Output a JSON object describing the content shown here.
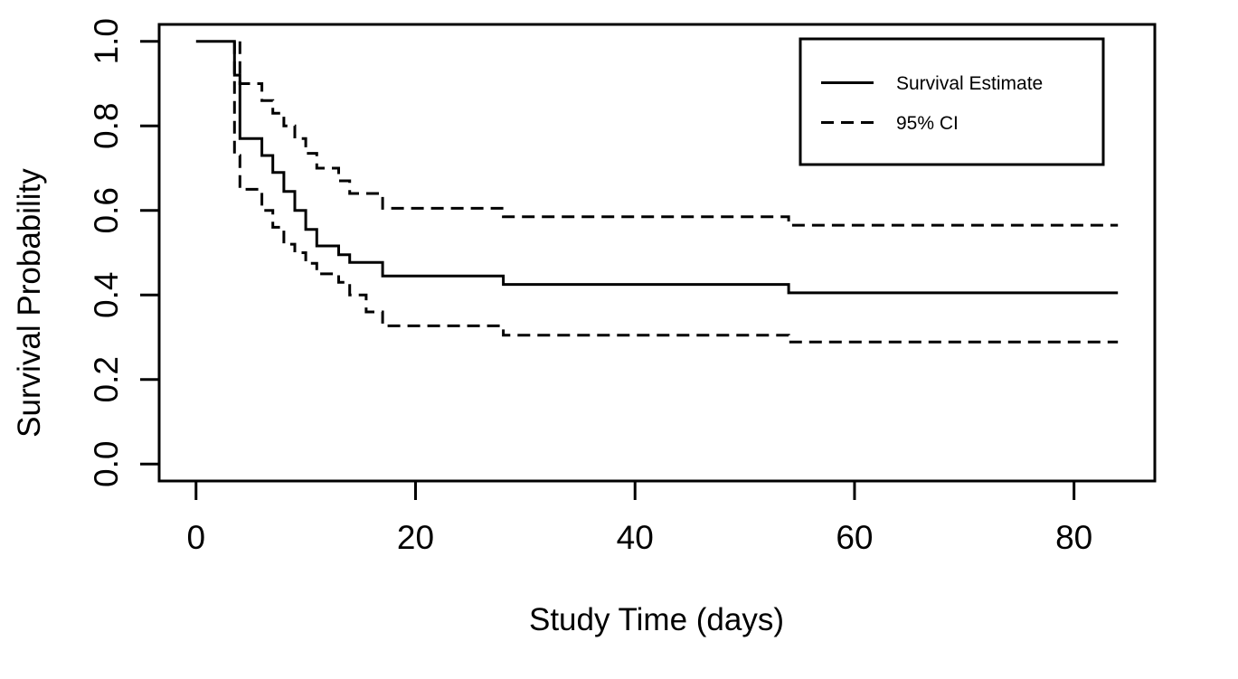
{
  "figure": {
    "background": "#ffffff",
    "ink_color": "#000000"
  },
  "chart_data": {
    "type": "line",
    "subtype": "kaplan-meier-step",
    "title": "",
    "xlabel": "Study Time (days)",
    "ylabel": "Survival Probability",
    "xlim": [
      0,
      84
    ],
    "ylim": [
      0,
      1
    ],
    "grid": false,
    "x_ticks": [
      {
        "value": 0,
        "label": "0"
      },
      {
        "value": 20,
        "label": "20"
      },
      {
        "value": 40,
        "label": "40"
      },
      {
        "value": 60,
        "label": "60"
      },
      {
        "value": 80,
        "label": "80"
      }
    ],
    "y_ticks": [
      {
        "value": 0.0,
        "label": "0.0"
      },
      {
        "value": 0.2,
        "label": "0.2"
      },
      {
        "value": 0.4,
        "label": "0.4"
      },
      {
        "value": 0.6,
        "label": "0.6"
      },
      {
        "value": 0.8,
        "label": "0.8"
      },
      {
        "value": 1.0,
        "label": "1.0"
      }
    ],
    "legend": {
      "position": "top-right",
      "entries": [
        {
          "label": "Survival Estimate",
          "line_style": "solid"
        },
        {
          "label": "95% CI",
          "line_style": "dashed"
        }
      ]
    },
    "series": [
      {
        "name": "Survival Estimate",
        "style": "solid",
        "points": [
          [
            0,
            1.0
          ],
          [
            3.5,
            0.92
          ],
          [
            4,
            0.77
          ],
          [
            6,
            0.73
          ],
          [
            7,
            0.69
          ],
          [
            8,
            0.645
          ],
          [
            9,
            0.6
          ],
          [
            10,
            0.555
          ],
          [
            11,
            0.516
          ],
          [
            13,
            0.495
          ],
          [
            14,
            0.477
          ],
          [
            17,
            0.445
          ],
          [
            28,
            0.425
          ],
          [
            54,
            0.405
          ],
          [
            84,
            0.405
          ]
        ]
      },
      {
        "name": "95% CI upper",
        "style": "dashed",
        "points": [
          [
            4,
            1.0
          ],
          [
            4,
            0.9
          ],
          [
            6,
            0.86
          ],
          [
            7,
            0.83
          ],
          [
            8,
            0.8
          ],
          [
            9,
            0.77
          ],
          [
            10,
            0.735
          ],
          [
            11,
            0.7
          ],
          [
            13,
            0.67
          ],
          [
            14,
            0.64
          ],
          [
            17,
            0.605
          ],
          [
            28,
            0.585
          ],
          [
            54,
            0.565
          ],
          [
            84,
            0.565
          ]
        ]
      },
      {
        "name": "95% CI lower",
        "style": "dashed",
        "points": [
          [
            3.5,
            1.0
          ],
          [
            3.5,
            0.73
          ],
          [
            4,
            0.65
          ],
          [
            6,
            0.6
          ],
          [
            7,
            0.56
          ],
          [
            8,
            0.52
          ],
          [
            9,
            0.5
          ],
          [
            10,
            0.475
          ],
          [
            11,
            0.45
          ],
          [
            13,
            0.43
          ],
          [
            14,
            0.4
          ],
          [
            15.5,
            0.36
          ],
          [
            17,
            0.327
          ],
          [
            28,
            0.305
          ],
          [
            54,
            0.289
          ],
          [
            84,
            0.289
          ]
        ]
      }
    ]
  }
}
